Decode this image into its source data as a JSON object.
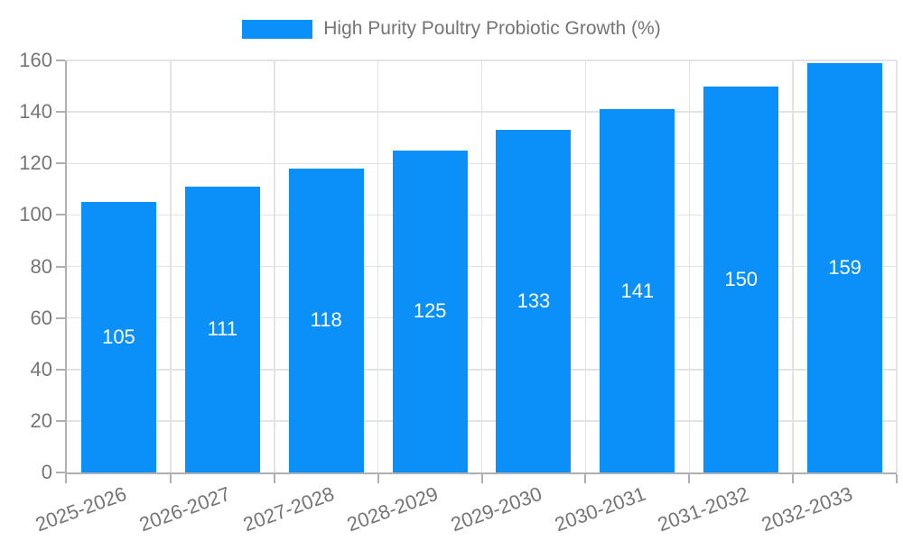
{
  "legend": {
    "label": "High Purity Poultry Probiotic Growth (%)"
  },
  "colors": {
    "bar": "#0a90f8",
    "grid": "#e3e3e3",
    "axis": "#b0b0b0",
    "tick_text": "#757575",
    "value_text": "#ffffff",
    "background": "#ffffff"
  },
  "chart_data": {
    "type": "bar",
    "title": "",
    "legend_entries": [
      "High Purity Poultry Probiotic Growth (%)"
    ],
    "legend_position": "top-center",
    "categories": [
      "2025-2026",
      "2026-2027",
      "2027-2028",
      "2028-2029",
      "2029-2030",
      "2030-2031",
      "2031-2032",
      "2032-2033"
    ],
    "values": [
      105,
      111,
      118,
      125,
      133,
      141,
      150,
      159
    ],
    "bar_value_labels": [
      "105",
      "111",
      "118",
      "125",
      "133",
      "141",
      "150",
      "159"
    ],
    "xlabel": "",
    "ylabel": "",
    "ylim": [
      0,
      160
    ],
    "yticks": [
      0,
      20,
      40,
      60,
      80,
      100,
      120,
      140,
      160
    ],
    "grid": true,
    "x_label_rotation_deg": -20
  }
}
